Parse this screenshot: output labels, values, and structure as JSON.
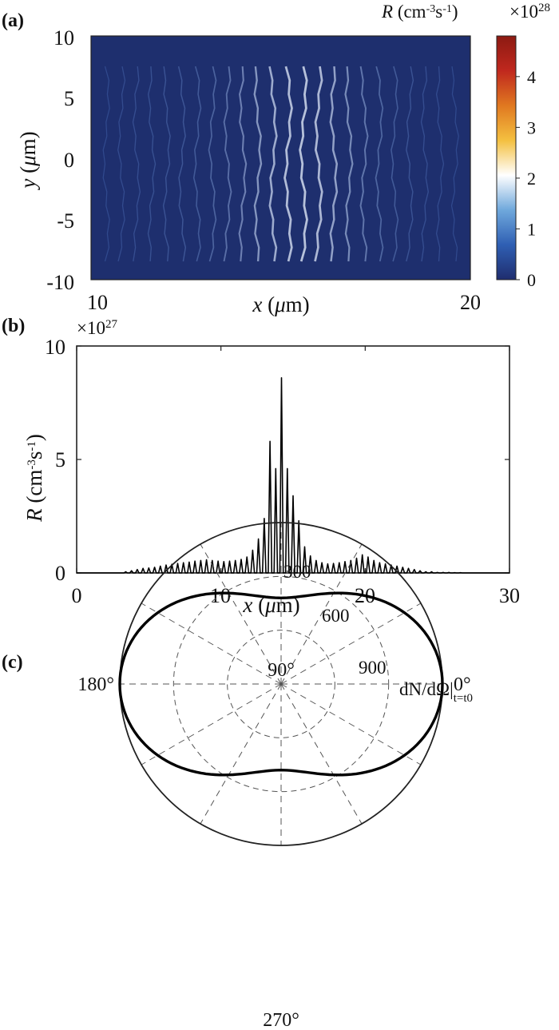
{
  "chart_data": [
    {
      "panel_label": "(a)",
      "type": "heatmap",
      "xlabel": "x (μm)",
      "ylabel": "y (μm)",
      "xlim": [
        10,
        20
      ],
      "ylim": [
        -10,
        10
      ],
      "x_ticks": [
        "10",
        "20"
      ],
      "y_ticks": [
        "10",
        "5",
        "0",
        "-5",
        "-10"
      ],
      "colorbar": {
        "label": "R (cm-3s-1)",
        "multiplier": "×10",
        "multiplier_exp": "28",
        "range": [
          0,
          4.8
        ],
        "ticks": [
          "0",
          "1",
          "2",
          "3",
          "4"
        ],
        "colormap": [
          "#1f2d6e",
          "#2f5fb3",
          "#6fa8dc",
          "#ffffff",
          "#f4c040",
          "#e07820",
          "#c0281e",
          "#8c1a12"
        ]
      },
      "background_color": "#1e2f6e",
      "stripes_x": [
        10.4,
        10.8,
        11.2,
        11.6,
        12.0,
        12.4,
        12.8,
        13.2,
        13.6,
        14.0,
        14.4,
        14.8,
        15.2,
        15.6,
        16.0,
        16.4,
        16.8,
        17.2,
        17.6,
        18.0,
        18.4,
        18.8,
        19.2,
        19.6
      ],
      "stripe_intensity": [
        0.12,
        0.14,
        0.16,
        0.18,
        0.2,
        0.22,
        0.26,
        0.32,
        0.4,
        0.5,
        0.62,
        0.72,
        0.8,
        0.82,
        0.78,
        0.68,
        0.56,
        0.44,
        0.34,
        0.26,
        0.2,
        0.16,
        0.14,
        0.12
      ],
      "stripe_y_extent": [
        -8.5,
        7.5
      ]
    },
    {
      "panel_label": "(b)",
      "type": "line",
      "xlabel": "x (μm)",
      "ylabel": "R (cm-3s-1)",
      "multiplier": "×10",
      "multiplier_exp": "27",
      "xlim": [
        0,
        30
      ],
      "ylim": [
        0,
        10
      ],
      "x_ticks": [
        0,
        10,
        20,
        30
      ],
      "y_ticks": [
        0,
        5,
        10
      ],
      "peaks_x": [
        3.4,
        3.8,
        4.2,
        4.6,
        5.0,
        5.4,
        5.8,
        6.2,
        6.6,
        7.0,
        7.4,
        7.8,
        8.2,
        8.6,
        9.0,
        9.4,
        9.8,
        10.2,
        10.6,
        11.0,
        11.4,
        11.8,
        12.2,
        12.6,
        13.0,
        13.4,
        13.8,
        14.2,
        14.6,
        15.0,
        15.4,
        15.8,
        16.2,
        16.6,
        17.0,
        17.4,
        17.8,
        18.2,
        18.6,
        19.0,
        19.4,
        19.8,
        20.2,
        20.6,
        21.0,
        21.4,
        21.8,
        22.2,
        22.6,
        23.0,
        23.4,
        23.8,
        24.2,
        24.6,
        25.0,
        25.4,
        25.8,
        26.2,
        26.6
      ],
      "peaks_y": [
        0.05,
        0.1,
        0.15,
        0.2,
        0.22,
        0.25,
        0.3,
        0.35,
        0.38,
        0.42,
        0.45,
        0.48,
        0.52,
        0.55,
        0.58,
        0.55,
        0.52,
        0.5,
        0.52,
        0.55,
        0.6,
        0.7,
        1.0,
        1.5,
        2.4,
        5.8,
        4.6,
        8.6,
        4.6,
        3.4,
        2.3,
        1.15,
        0.75,
        0.55,
        0.45,
        0.4,
        0.42,
        0.45,
        0.5,
        0.55,
        0.65,
        0.8,
        0.7,
        0.55,
        0.45,
        0.4,
        0.35,
        0.3,
        0.25,
        0.2,
        0.15,
        0.1,
        0.05,
        0.05,
        0.02,
        0.02,
        0.02,
        0.01,
        0.01
      ],
      "peak_half_width": 0.12
    },
    {
      "panel_label": "(c)",
      "type": "polar",
      "title": "dN/dΩ|",
      "title_subscript": "t=t0",
      "r_ticks": [
        300,
        600,
        900
      ],
      "r_max": 900,
      "angle_labels": [
        {
          "angle": 0,
          "label": "0°"
        },
        {
          "angle": 90,
          "label": "90°"
        },
        {
          "angle": 180,
          "label": "180°"
        },
        {
          "angle": 270,
          "label": "270°"
        }
      ],
      "spoke_step_deg": 30,
      "curve": {
        "a": 900,
        "b": 480,
        "description_formula": "r(θ) = b + (a - b)·cos²θ"
      }
    }
  ]
}
